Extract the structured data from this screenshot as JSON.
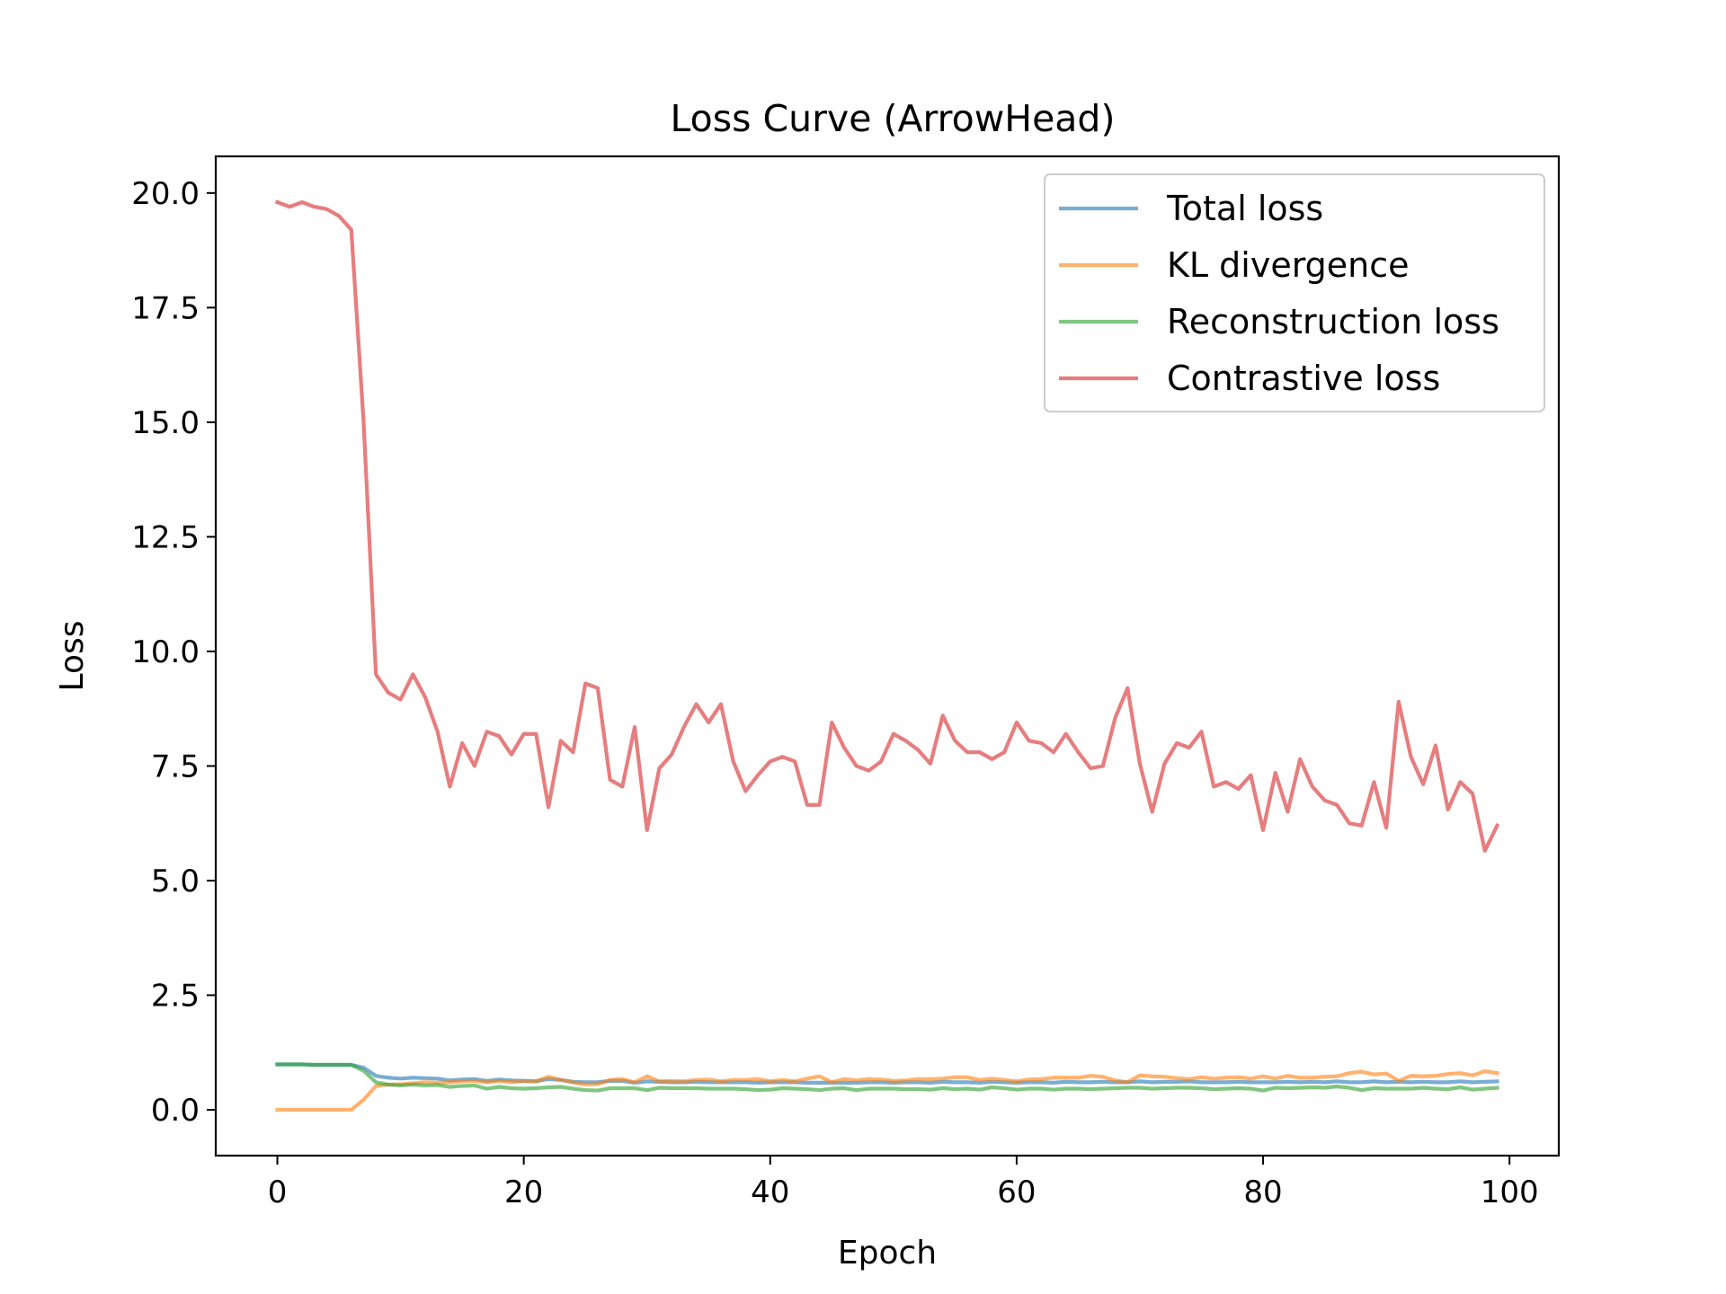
{
  "chart_data": {
    "type": "line",
    "title": "Loss Curve (ArrowHead)",
    "xlabel": "Epoch",
    "ylabel": "Loss",
    "xlim": [
      -5,
      104
    ],
    "ylim": [
      -1.0,
      20.8
    ],
    "xticks": [
      0,
      20,
      40,
      60,
      80,
      100
    ],
    "yticks": [
      0.0,
      2.5,
      5.0,
      7.5,
      10.0,
      12.5,
      15.0,
      17.5,
      20.0
    ],
    "xtick_labels": [
      "0",
      "20",
      "40",
      "60",
      "80",
      "100"
    ],
    "ytick_labels": [
      "0.0",
      "2.5",
      "5.0",
      "7.5",
      "10.0",
      "12.5",
      "15.0",
      "17.5",
      "20.0"
    ],
    "grid": false,
    "legend_position": "top-right",
    "series": [
      {
        "name": "Total loss",
        "color": "#1f77b4",
        "values": [
          0.99,
          0.99,
          0.99,
          0.98,
          0.98,
          0.98,
          0.98,
          0.92,
          0.74,
          0.7,
          0.68,
          0.7,
          0.69,
          0.68,
          0.64,
          0.66,
          0.67,
          0.63,
          0.66,
          0.64,
          0.63,
          0.62,
          0.67,
          0.65,
          0.61,
          0.6,
          0.6,
          0.63,
          0.63,
          0.59,
          0.62,
          0.61,
          0.6,
          0.6,
          0.61,
          0.6,
          0.6,
          0.6,
          0.6,
          0.59,
          0.6,
          0.6,
          0.6,
          0.59,
          0.59,
          0.59,
          0.59,
          0.59,
          0.6,
          0.6,
          0.59,
          0.6,
          0.6,
          0.59,
          0.61,
          0.6,
          0.6,
          0.59,
          0.61,
          0.6,
          0.59,
          0.6,
          0.6,
          0.59,
          0.61,
          0.6,
          0.6,
          0.61,
          0.6,
          0.6,
          0.62,
          0.6,
          0.61,
          0.61,
          0.62,
          0.6,
          0.6,
          0.6,
          0.61,
          0.6,
          0.6,
          0.6,
          0.61,
          0.6,
          0.61,
          0.6,
          0.62,
          0.6,
          0.6,
          0.62,
          0.6,
          0.61,
          0.6,
          0.61,
          0.6,
          0.6,
          0.62,
          0.6,
          0.61,
          0.62
        ]
      },
      {
        "name": "KL divergence",
        "color": "#ff7f0e",
        "values": [
          0.0,
          0.0,
          0.0,
          0.0,
          0.0,
          0.0,
          0.0,
          0.22,
          0.52,
          0.55,
          0.56,
          0.58,
          0.6,
          0.59,
          0.6,
          0.62,
          0.63,
          0.6,
          0.63,
          0.6,
          0.63,
          0.62,
          0.72,
          0.65,
          0.6,
          0.55,
          0.56,
          0.65,
          0.67,
          0.6,
          0.73,
          0.62,
          0.63,
          0.62,
          0.65,
          0.66,
          0.62,
          0.65,
          0.65,
          0.67,
          0.62,
          0.65,
          0.62,
          0.68,
          0.73,
          0.6,
          0.67,
          0.64,
          0.67,
          0.66,
          0.63,
          0.64,
          0.67,
          0.67,
          0.68,
          0.71,
          0.71,
          0.65,
          0.68,
          0.65,
          0.62,
          0.66,
          0.67,
          0.7,
          0.7,
          0.7,
          0.74,
          0.72,
          0.64,
          0.6,
          0.75,
          0.73,
          0.72,
          0.69,
          0.67,
          0.71,
          0.68,
          0.7,
          0.71,
          0.68,
          0.73,
          0.68,
          0.74,
          0.7,
          0.7,
          0.72,
          0.73,
          0.8,
          0.83,
          0.77,
          0.79,
          0.63,
          0.74,
          0.73,
          0.74,
          0.78,
          0.8,
          0.75,
          0.84,
          0.8
        ]
      },
      {
        "name": "Reconstruction loss",
        "color": "#2ca02c",
        "values": [
          0.99,
          0.99,
          0.99,
          0.98,
          0.98,
          0.98,
          0.98,
          0.85,
          0.6,
          0.55,
          0.53,
          0.55,
          0.53,
          0.54,
          0.5,
          0.52,
          0.53,
          0.46,
          0.5,
          0.47,
          0.46,
          0.47,
          0.49,
          0.5,
          0.46,
          0.43,
          0.42,
          0.47,
          0.47,
          0.47,
          0.43,
          0.48,
          0.47,
          0.47,
          0.47,
          0.46,
          0.46,
          0.46,
          0.45,
          0.43,
          0.44,
          0.47,
          0.46,
          0.45,
          0.43,
          0.46,
          0.47,
          0.43,
          0.46,
          0.46,
          0.46,
          0.45,
          0.45,
          0.44,
          0.47,
          0.45,
          0.46,
          0.44,
          0.49,
          0.47,
          0.44,
          0.46,
          0.46,
          0.44,
          0.46,
          0.46,
          0.45,
          0.46,
          0.47,
          0.48,
          0.48,
          0.46,
          0.47,
          0.48,
          0.48,
          0.47,
          0.45,
          0.46,
          0.47,
          0.46,
          0.42,
          0.48,
          0.47,
          0.48,
          0.49,
          0.48,
          0.51,
          0.48,
          0.43,
          0.47,
          0.46,
          0.46,
          0.46,
          0.48,
          0.46,
          0.45,
          0.49,
          0.44,
          0.46,
          0.48
        ]
      },
      {
        "name": "Contrastive loss",
        "color": "#d62728",
        "values": [
          19.8,
          19.7,
          19.8,
          19.7,
          19.65,
          19.5,
          19.2,
          15.0,
          9.5,
          9.1,
          8.95,
          9.5,
          9.0,
          8.25,
          7.05,
          8.0,
          7.5,
          8.25,
          8.15,
          7.75,
          8.2,
          8.2,
          6.6,
          8.05,
          7.8,
          9.3,
          9.2,
          7.2,
          7.05,
          8.35,
          6.1,
          7.45,
          7.75,
          8.35,
          8.85,
          8.45,
          8.85,
          7.6,
          6.95,
          7.3,
          7.6,
          7.7,
          7.6,
          6.65,
          6.65,
          8.45,
          7.9,
          7.5,
          7.4,
          7.6,
          8.2,
          8.05,
          7.85,
          7.55,
          8.6,
          8.05,
          7.8,
          7.8,
          7.65,
          7.8,
          8.45,
          8.05,
          8.0,
          7.8,
          8.2,
          7.8,
          7.45,
          7.5,
          8.55,
          9.2,
          7.55,
          6.5,
          7.55,
          8.0,
          7.9,
          8.25,
          7.05,
          7.15,
          7.0,
          7.3,
          6.1,
          7.35,
          6.5,
          7.65,
          7.05,
          6.75,
          6.65,
          6.25,
          6.2,
          7.15,
          6.15,
          8.9,
          7.7,
          7.1,
          7.95,
          6.55,
          7.15,
          6.9,
          5.65,
          6.2
        ]
      }
    ]
  }
}
